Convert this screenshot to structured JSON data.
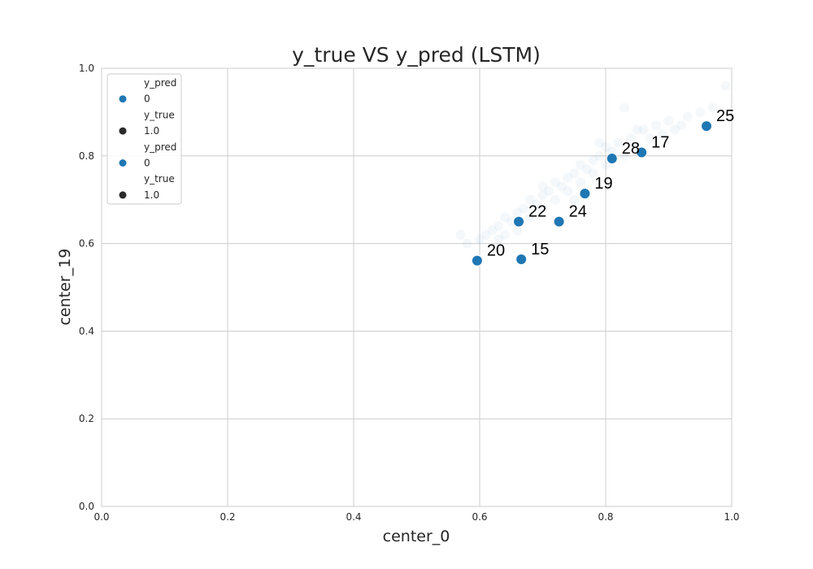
{
  "chart_data": {
    "type": "scatter",
    "title": "y_true VS y_pred (LSTM)",
    "xlabel": "center_0",
    "ylabel": "center_19",
    "xlim": [
      0.0,
      1.0
    ],
    "ylim": [
      0.0,
      1.0
    ],
    "x_ticks": [
      "0.0",
      "0.2",
      "0.4",
      "0.6",
      "0.8",
      "1.0"
    ],
    "y_ticks": [
      "0.0",
      "0.2",
      "0.4",
      "0.6",
      "0.8",
      "1.0"
    ],
    "grid": true,
    "legend_position": "top-left",
    "legend": [
      {
        "kind": "title",
        "text": "y_pred"
      },
      {
        "kind": "entry",
        "text": "0",
        "color": "#1f77b4"
      },
      {
        "kind": "title",
        "text": "y_true"
      },
      {
        "kind": "entry",
        "text": "1.0",
        "color": "#2b2b2b"
      },
      {
        "kind": "title",
        "text": "y_pred"
      },
      {
        "kind": "entry",
        "text": "0",
        "color": "#1f77b4"
      },
      {
        "kind": "title",
        "text": "y_true"
      },
      {
        "kind": "entry",
        "text": "1.0",
        "color": "#2b2b2b"
      }
    ],
    "series": [
      {
        "name": "y_pred",
        "color": "#1f77b4",
        "points": [
          {
            "x": 0.596,
            "y": 0.561,
            "label": "20"
          },
          {
            "x": 0.666,
            "y": 0.564,
            "label": "15"
          },
          {
            "x": 0.662,
            "y": 0.65,
            "label": "22"
          },
          {
            "x": 0.726,
            "y": 0.65,
            "label": "24"
          },
          {
            "x": 0.767,
            "y": 0.714,
            "label": "19"
          },
          {
            "x": 0.81,
            "y": 0.794,
            "label": "28"
          },
          {
            "x": 0.857,
            "y": 0.808,
            "label": "17"
          },
          {
            "x": 0.96,
            "y": 0.868,
            "label": "25"
          }
        ]
      },
      {
        "name": "y_true",
        "color": "#1f77b4",
        "opacity": 0.05,
        "points": [
          {
            "x": 0.58,
            "y": 0.6
          },
          {
            "x": 0.6,
            "y": 0.61
          },
          {
            "x": 0.61,
            "y": 0.62
          },
          {
            "x": 0.62,
            "y": 0.63
          },
          {
            "x": 0.63,
            "y": 0.64
          },
          {
            "x": 0.63,
            "y": 0.61
          },
          {
            "x": 0.64,
            "y": 0.66
          },
          {
            "x": 0.65,
            "y": 0.65
          },
          {
            "x": 0.66,
            "y": 0.67
          },
          {
            "x": 0.66,
            "y": 0.63
          },
          {
            "x": 0.67,
            "y": 0.68
          },
          {
            "x": 0.68,
            "y": 0.66
          },
          {
            "x": 0.68,
            "y": 0.7
          },
          {
            "x": 0.69,
            "y": 0.69
          },
          {
            "x": 0.7,
            "y": 0.71
          },
          {
            "x": 0.7,
            "y": 0.68
          },
          {
            "x": 0.71,
            "y": 0.72
          },
          {
            "x": 0.72,
            "y": 0.7
          },
          {
            "x": 0.72,
            "y": 0.74
          },
          {
            "x": 0.73,
            "y": 0.73
          },
          {
            "x": 0.74,
            "y": 0.75
          },
          {
            "x": 0.74,
            "y": 0.72
          },
          {
            "x": 0.75,
            "y": 0.76
          },
          {
            "x": 0.76,
            "y": 0.74
          },
          {
            "x": 0.76,
            "y": 0.78
          },
          {
            "x": 0.77,
            "y": 0.77
          },
          {
            "x": 0.78,
            "y": 0.79
          },
          {
            "x": 0.78,
            "y": 0.76
          },
          {
            "x": 0.79,
            "y": 0.8
          },
          {
            "x": 0.8,
            "y": 0.78
          },
          {
            "x": 0.8,
            "y": 0.82
          },
          {
            "x": 0.81,
            "y": 0.81
          },
          {
            "x": 0.82,
            "y": 0.83
          },
          {
            "x": 0.83,
            "y": 0.8
          },
          {
            "x": 0.84,
            "y": 0.84
          },
          {
            "x": 0.85,
            "y": 0.82
          },
          {
            "x": 0.86,
            "y": 0.86
          },
          {
            "x": 0.87,
            "y": 0.84
          },
          {
            "x": 0.88,
            "y": 0.87
          },
          {
            "x": 0.89,
            "y": 0.85
          },
          {
            "x": 0.9,
            "y": 0.88
          },
          {
            "x": 0.92,
            "y": 0.87
          },
          {
            "x": 0.93,
            "y": 0.89
          },
          {
            "x": 0.95,
            "y": 0.9
          },
          {
            "x": 0.97,
            "y": 0.91
          },
          {
            "x": 0.99,
            "y": 0.96
          },
          {
            "x": 0.83,
            "y": 0.91
          },
          {
            "x": 0.57,
            "y": 0.62
          },
          {
            "x": 0.7,
            "y": 0.73
          },
          {
            "x": 0.75,
            "y": 0.7
          },
          {
            "x": 0.64,
            "y": 0.62
          },
          {
            "x": 0.79,
            "y": 0.83
          },
          {
            "x": 0.85,
            "y": 0.86
          },
          {
            "x": 0.91,
            "y": 0.86
          }
        ]
      }
    ]
  }
}
